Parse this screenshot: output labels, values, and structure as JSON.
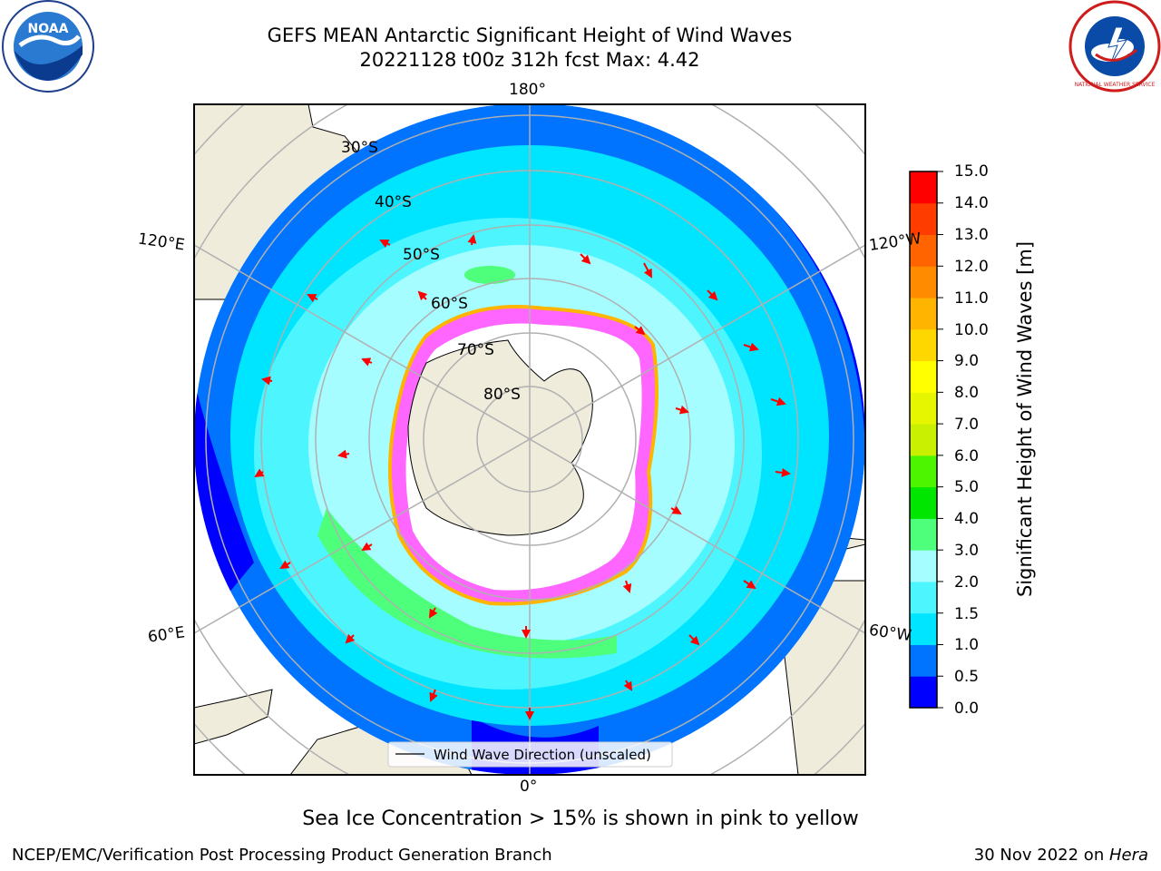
{
  "title": {
    "line1": "GEFS MEAN Antarctic Significant Height of Wind Waves",
    "line2": "20221128 t00z 312h fcst   Max: 4.42"
  },
  "logos": {
    "left": {
      "name": "noaa-logo",
      "text": "NOAA"
    },
    "right": {
      "name": "nws-logo",
      "text": "NATIONAL WEATHER SERVICE"
    }
  },
  "map": {
    "longitude_labels": {
      "top": "180°",
      "bottom": "0°",
      "left_upper": "120°E",
      "right_upper": "120°W",
      "left_lower": "60°E",
      "right_lower": "60°W"
    },
    "latitude_labels": [
      "30°S",
      "40°S",
      "50°S",
      "60°S",
      "70°S",
      "80°S"
    ],
    "legend": "Wind Wave Direction (unscaled)"
  },
  "colorbar": {
    "label": "Significant Height of Wind Waves [m]",
    "ticks": [
      "15.0",
      "14.0",
      "13.0",
      "12.0",
      "11.0",
      "10.0",
      "9.0",
      "8.0",
      "7.0",
      "6.0",
      "5.0",
      "4.0",
      "3.0",
      "2.0",
      "1.5",
      "1.0",
      "0.5",
      "0.0"
    ],
    "colors": [
      "#0000ff",
      "#0073ff",
      "#00e5ff",
      "#4df5ff",
      "#a6fdff",
      "#4dff7b",
      "#00e600",
      "#4df500",
      "#c8f000",
      "#e6f500",
      "#ffff00",
      "#ffd700",
      "#ffb400",
      "#ff8c00",
      "#ff6400",
      "#ff3c00",
      "#ff0000"
    ]
  },
  "note": "Sea Ice Concentration > 15% is shown in pink to yellow",
  "footer": {
    "left": "NCEP/EMC/Verification Post Processing Product Generation Branch",
    "right_date": "30 Nov 2022 on ",
    "right_machine": "Hera"
  }
}
